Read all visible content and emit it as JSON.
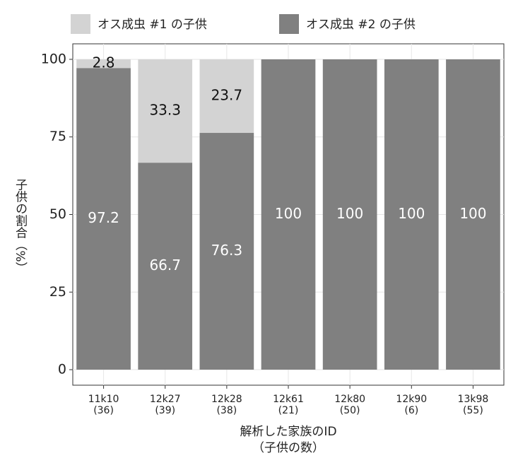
{
  "chart_data": {
    "type": "stacked_bar",
    "categories": [
      [
        "11k10",
        "(36)"
      ],
      [
        "12k27",
        "(39)"
      ],
      [
        "12k28",
        "(38)"
      ],
      [
        "12k61",
        "(21)"
      ],
      [
        "12k80",
        "(50)"
      ],
      [
        "12k90",
        "(6)"
      ],
      [
        "13k98",
        "(55)"
      ]
    ],
    "series": [
      {
        "name": "オス成虫 #1 の子供",
        "color": "#d3d3d3",
        "values": [
          2.8,
          33.3,
          23.7,
          0,
          0,
          0,
          0
        ]
      },
      {
        "name": "オス成虫 #2 の子供",
        "color": "#808080",
        "values": [
          97.2,
          66.7,
          76.3,
          100,
          100,
          100,
          100
        ]
      }
    ],
    "stack_order": [
      1,
      0
    ],
    "ylim": [
      -5,
      105
    ],
    "yticks": [
      0,
      25,
      50,
      75,
      100
    ],
    "y_label": "子供の割合（%）",
    "x_label": [
      "解析した家族のID",
      "（子供の数）"
    ],
    "grid": true
  }
}
